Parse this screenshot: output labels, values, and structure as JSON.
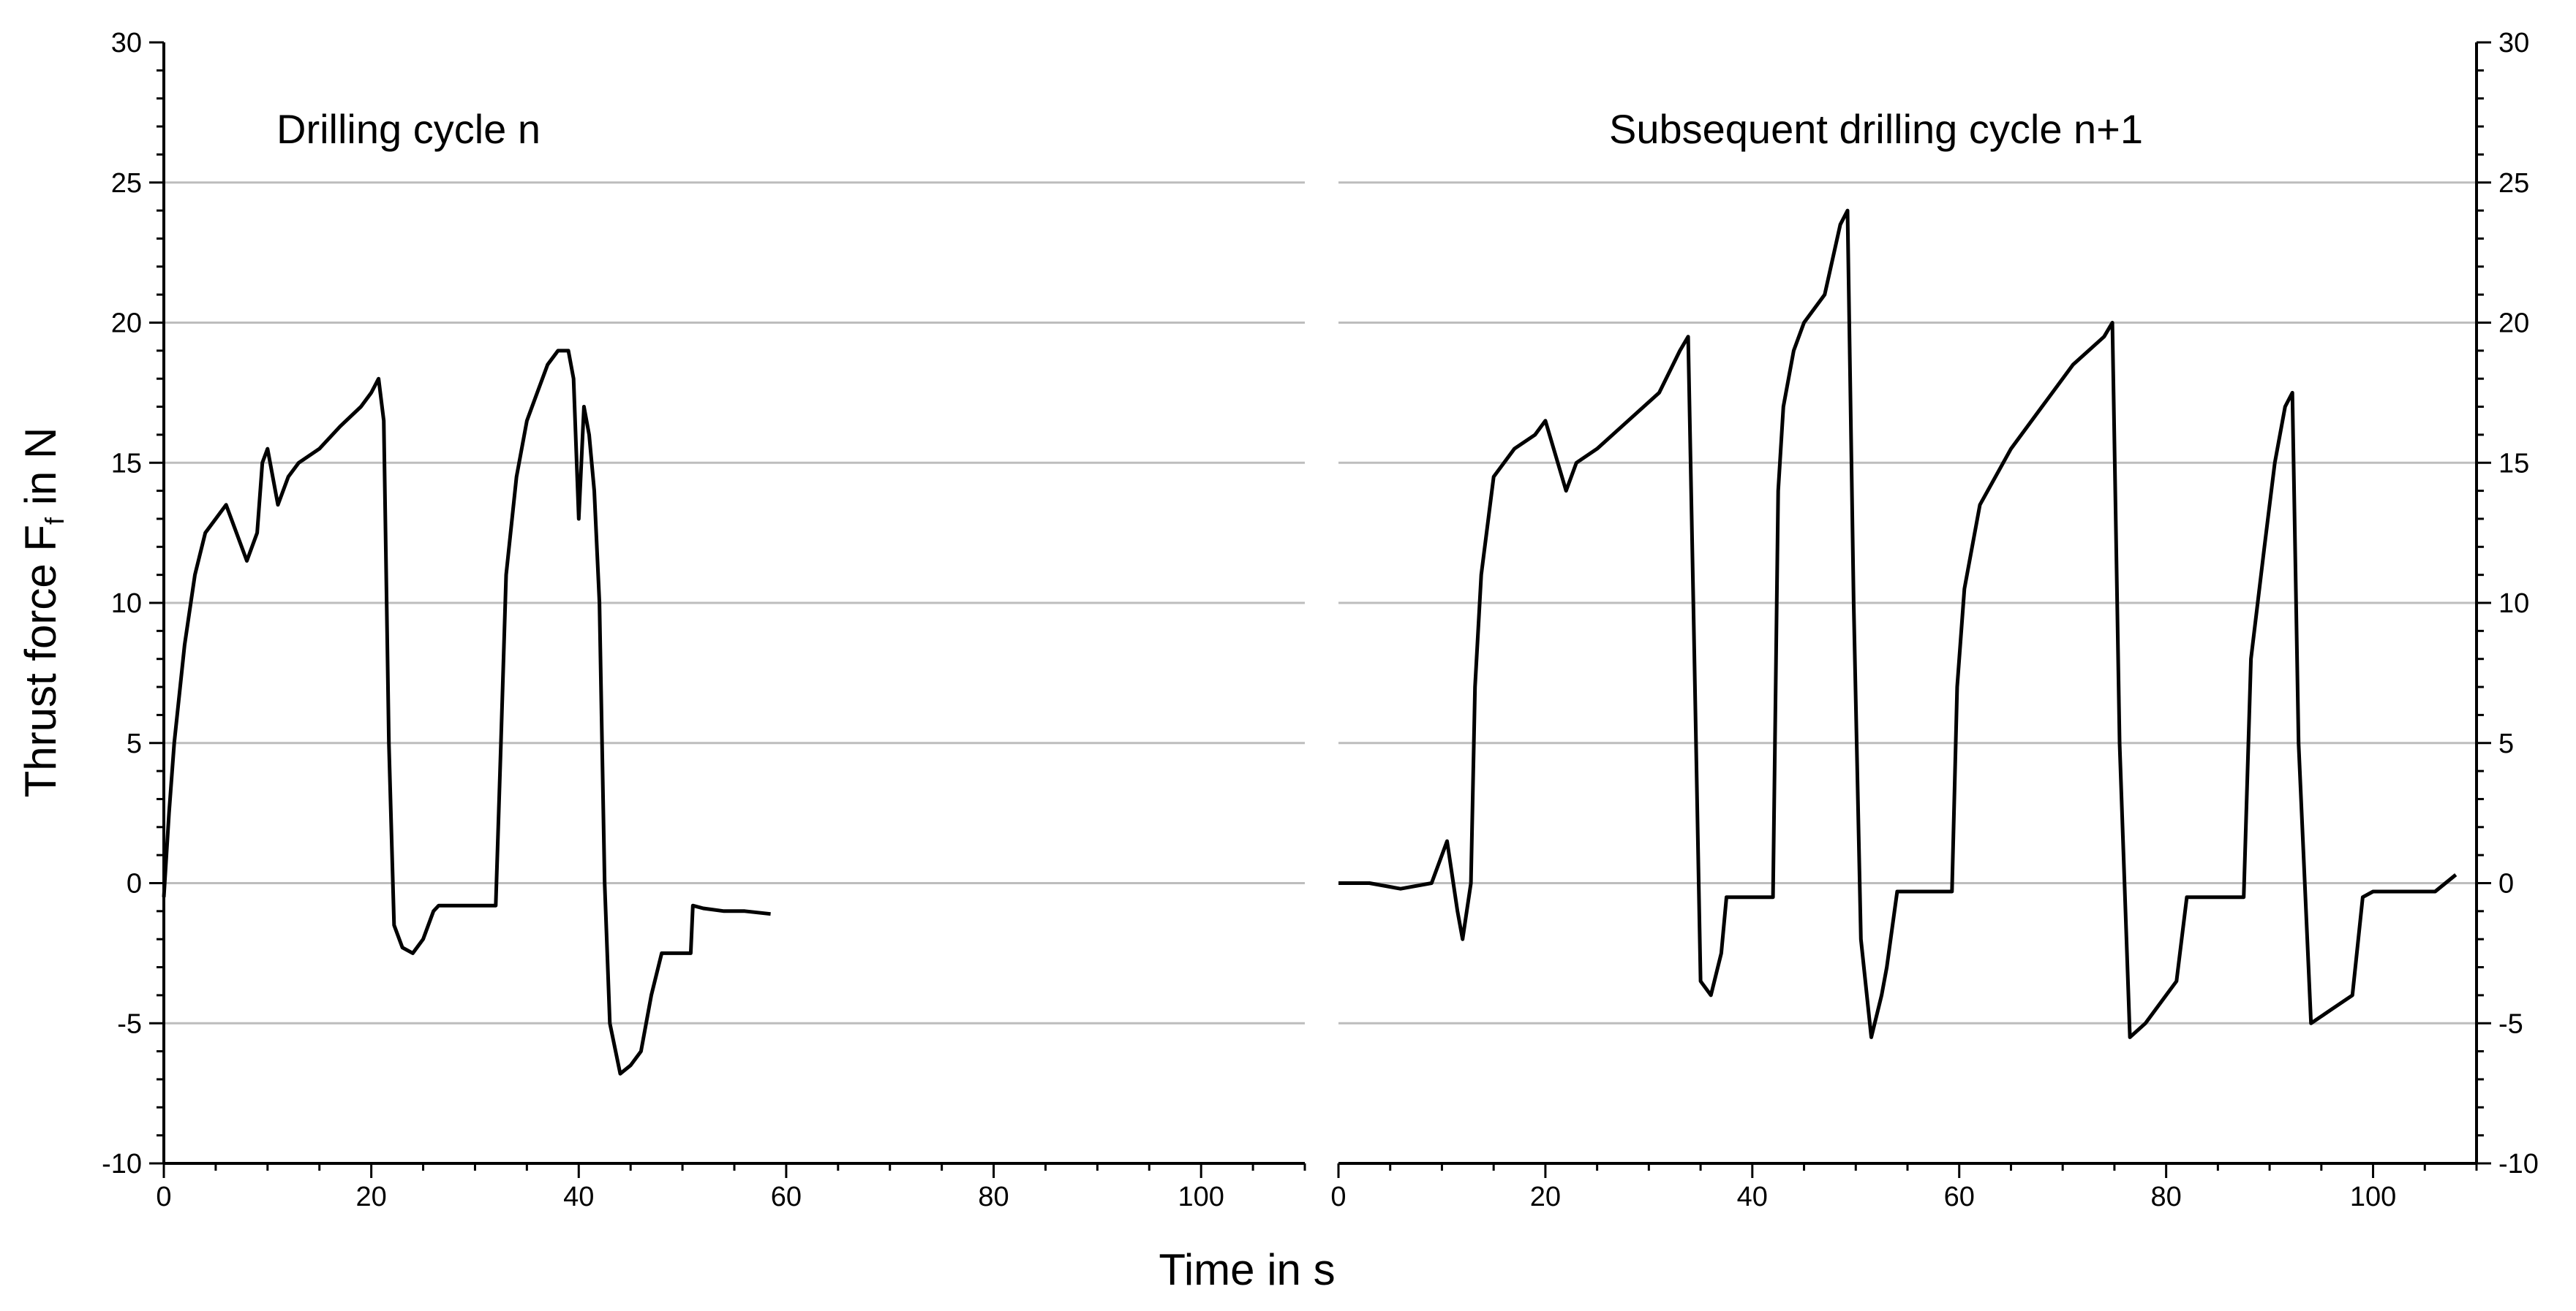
{
  "chart_data": [
    {
      "type": "line",
      "panel": "left",
      "annotation": "Drilling cycle n",
      "xlim": [
        0,
        110
      ],
      "ylim": [
        -10,
        30
      ],
      "xticks": [
        0,
        20,
        40,
        60,
        80,
        100
      ],
      "yticks": [
        -10,
        -5,
        0,
        5,
        10,
        15,
        20,
        25,
        30
      ],
      "ylabel": "Thrust force F",
      "ylabel_sub": "f",
      "ylabel_tail": " in N",
      "grid": "horizontal",
      "line_color": "#000000",
      "series": [
        {
          "x": [
            0,
            0.5,
            1,
            2,
            3,
            4,
            5,
            6,
            7,
            8,
            9,
            9.5,
            10,
            11,
            12,
            13,
            15,
            17,
            19,
            20,
            20.7,
            21.2,
            21.7,
            22.2,
            23,
            24,
            25,
            26,
            26.5,
            28,
            30,
            32,
            32.5,
            33,
            34,
            35,
            36,
            37,
            38,
            39,
            39.5,
            40,
            40.5,
            41,
            41.5,
            42,
            42.5,
            43,
            44,
            45,
            46,
            47,
            48,
            49,
            50,
            50.8,
            51,
            52,
            54,
            56,
            58.5
          ],
          "y": [
            -0.5,
            2.5,
            5.0,
            8.5,
            11.0,
            12.5,
            13.0,
            13.5,
            12.5,
            11.5,
            12.5,
            15.0,
            15.5,
            13.5,
            14.5,
            15.0,
            15.5,
            16.3,
            17.0,
            17.5,
            18.0,
            16.5,
            5.0,
            -1.5,
            -2.3,
            -2.5,
            -2.0,
            -1.0,
            -0.8,
            -0.8,
            -0.8,
            -0.8,
            5.0,
            11.0,
            14.5,
            16.5,
            17.5,
            18.5,
            19.0,
            19.0,
            18.0,
            13.0,
            17.0,
            16.0,
            14.0,
            10.0,
            0.0,
            -5.0,
            -6.8,
            -6.5,
            -6.0,
            -4.0,
            -2.5,
            -2.5,
            -2.5,
            -2.5,
            -0.8,
            -0.9,
            -1.0,
            -1.0,
            -1.1
          ]
        }
      ]
    },
    {
      "type": "line",
      "panel": "right",
      "annotation": "Subsequent drilling cycle n+1",
      "xlim": [
        0,
        110
      ],
      "ylim": [
        -10,
        30
      ],
      "xticks": [
        0,
        20,
        40,
        60,
        80,
        100
      ],
      "yticks": [
        -10,
        -5,
        0,
        5,
        10,
        15,
        20,
        25,
        30
      ],
      "xlabel": "Time in s",
      "grid": "horizontal",
      "line_color": "#000000",
      "series": [
        {
          "x": [
            0,
            3,
            6,
            9,
            10.5,
            11.5,
            12,
            12.8,
            13.2,
            13.8,
            15,
            17,
            19,
            20,
            22,
            23,
            25,
            28,
            31,
            33,
            33.8,
            34.3,
            35,
            36,
            37,
            37.5,
            40,
            42,
            42.5,
            43,
            44,
            45,
            47,
            48.5,
            49.2,
            49.8,
            50.5,
            51.5,
            52.5,
            53,
            54,
            55,
            56,
            58,
            59.3,
            59.8,
            60.5,
            62,
            65,
            68,
            71,
            74,
            74.8,
            75.5,
            76.5,
            78,
            80,
            81,
            82,
            85,
            87.5,
            88.2,
            89.5,
            90.5,
            91.5,
            92.2,
            92.8,
            94,
            96,
            98,
            99,
            100,
            103,
            106,
            108
          ],
          "y": [
            0.0,
            0.0,
            -0.2,
            0.0,
            1.5,
            -1.0,
            -2.0,
            0.0,
            7.0,
            11.0,
            14.5,
            15.5,
            16.0,
            16.5,
            14.0,
            15.0,
            15.5,
            16.5,
            17.5,
            19.0,
            19.5,
            10.0,
            -3.5,
            -4.0,
            -2.5,
            -0.5,
            -0.5,
            -0.5,
            14.0,
            17.0,
            19.0,
            20.0,
            21.0,
            23.5,
            24.0,
            10.0,
            -2.0,
            -5.5,
            -4.0,
            -3.0,
            -0.3,
            -0.3,
            -0.3,
            -0.3,
            -0.3,
            7.0,
            10.5,
            13.5,
            15.5,
            17.0,
            18.5,
            19.5,
            20.0,
            5.0,
            -5.5,
            -5.0,
            -4.0,
            -3.5,
            -0.5,
            -0.5,
            -0.5,
            8.0,
            12.0,
            15.0,
            17.0,
            17.5,
            5.0,
            -5.0,
            -4.5,
            -4.0,
            -0.5,
            -0.3,
            -0.3,
            -0.3,
            0.3
          ]
        }
      ]
    }
  ]
}
